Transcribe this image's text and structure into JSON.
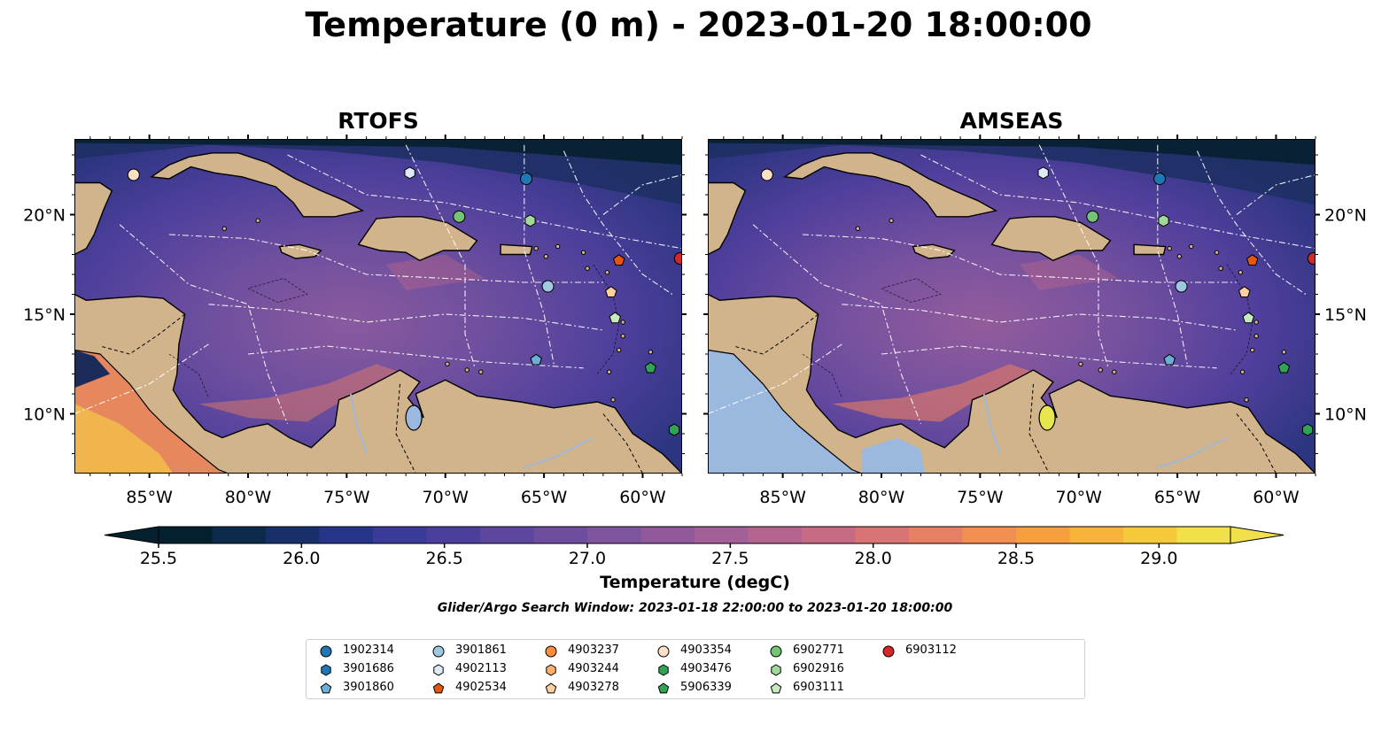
{
  "title": "Temperature (0 m) - 2023-01-20 18:00:00",
  "panels": [
    {
      "id": "left",
      "title": "RTOFS"
    },
    {
      "id": "right",
      "title": "AMSEAS"
    }
  ],
  "axes": {
    "lon_ticks": [
      "85°W",
      "80°W",
      "75°W",
      "70°W",
      "65°W",
      "60°W"
    ],
    "lat_ticks": [
      "20°N",
      "15°N",
      "10°N"
    ],
    "lon_range": [
      -88.8,
      -58.0
    ],
    "lat_range": [
      7.0,
      23.8
    ]
  },
  "colorbar": {
    "label": "Temperature (degC)",
    "ticks": [
      "25.5",
      "26.0",
      "26.5",
      "27.0",
      "27.5",
      "28.0",
      "28.5",
      "29.0"
    ],
    "range": [
      25.5,
      29.25
    ],
    "extend": "both",
    "colors": [
      "#04202e",
      "#0c2a4b",
      "#17306a",
      "#26358a",
      "#3a3a99",
      "#4a3f9d",
      "#5d469e",
      "#6e4d9f",
      "#7f549e",
      "#91599c",
      "#a35f98",
      "#b56490",
      "#c76a84",
      "#d87475",
      "#e67f63",
      "#f28e4f",
      "#f79f3f",
      "#f8b33a",
      "#f6c93d",
      "#f1e04a"
    ]
  },
  "search_window": "Glider/Argo Search Window: 2023-01-18 22:00:00 to 2023-01-20 18:00:00",
  "legend_items": [
    {
      "label": "1902314",
      "shape": "circle",
      "color": "#1f77b4"
    },
    {
      "label": "3901686",
      "shape": "hexagon",
      "color": "#1f77b4"
    },
    {
      "label": "3901860",
      "shape": "pentagon",
      "color": "#6baed6"
    },
    {
      "label": "3901861",
      "shape": "circle",
      "color": "#9ecae1"
    },
    {
      "label": "4902113",
      "shape": "hexagon",
      "color": "#deebf7"
    },
    {
      "label": "4902534",
      "shape": "pentagon",
      "color": "#e6550d"
    },
    {
      "label": "4903237",
      "shape": "circle",
      "color": "#fd8d3c"
    },
    {
      "label": "4903244",
      "shape": "hexagon",
      "color": "#fdae6b"
    },
    {
      "label": "4903278",
      "shape": "pentagon",
      "color": "#fdd0a2"
    },
    {
      "label": "4903354",
      "shape": "circle",
      "color": "#fde0c5"
    },
    {
      "label": "4903476",
      "shape": "hexagon",
      "color": "#31a354"
    },
    {
      "label": "5906339",
      "shape": "pentagon",
      "color": "#31a354"
    },
    {
      "label": "6902771",
      "shape": "circle",
      "color": "#74c476"
    },
    {
      "label": "6902916",
      "shape": "hexagon",
      "color": "#a1d99b"
    },
    {
      "label": "6903111",
      "shape": "pentagon",
      "color": "#c7e9c0"
    },
    {
      "label": "6903112",
      "shape": "circle",
      "color": "#d62728"
    }
  ],
  "floats": [
    {
      "id": "4903354",
      "lon": -85.8,
      "lat": 22.0
    },
    {
      "id": "4902113",
      "lon": -71.8,
      "lat": 22.1
    },
    {
      "id": "1902314",
      "lon": -65.9,
      "lat": 21.8
    },
    {
      "id": "6902771",
      "lon": -69.3,
      "lat": 19.9
    },
    {
      "id": "6902916",
      "lon": -65.7,
      "lat": 19.7
    },
    {
      "id": "4902534",
      "lon": -61.2,
      "lat": 17.7
    },
    {
      "id": "6903112",
      "lon": -58.1,
      "lat": 17.8
    },
    {
      "id": "3901861",
      "lon": -64.8,
      "lat": 16.4
    },
    {
      "id": "4903278",
      "lon": -61.6,
      "lat": 16.1
    },
    {
      "id": "6903111",
      "lon": -61.4,
      "lat": 14.8
    },
    {
      "id": "3901860",
      "lon": -65.4,
      "lat": 12.7
    },
    {
      "id": "5906339",
      "lon": -59.6,
      "lat": 12.3
    },
    {
      "id": "4903476",
      "lon": -58.4,
      "lat": 9.2
    }
  ]
}
